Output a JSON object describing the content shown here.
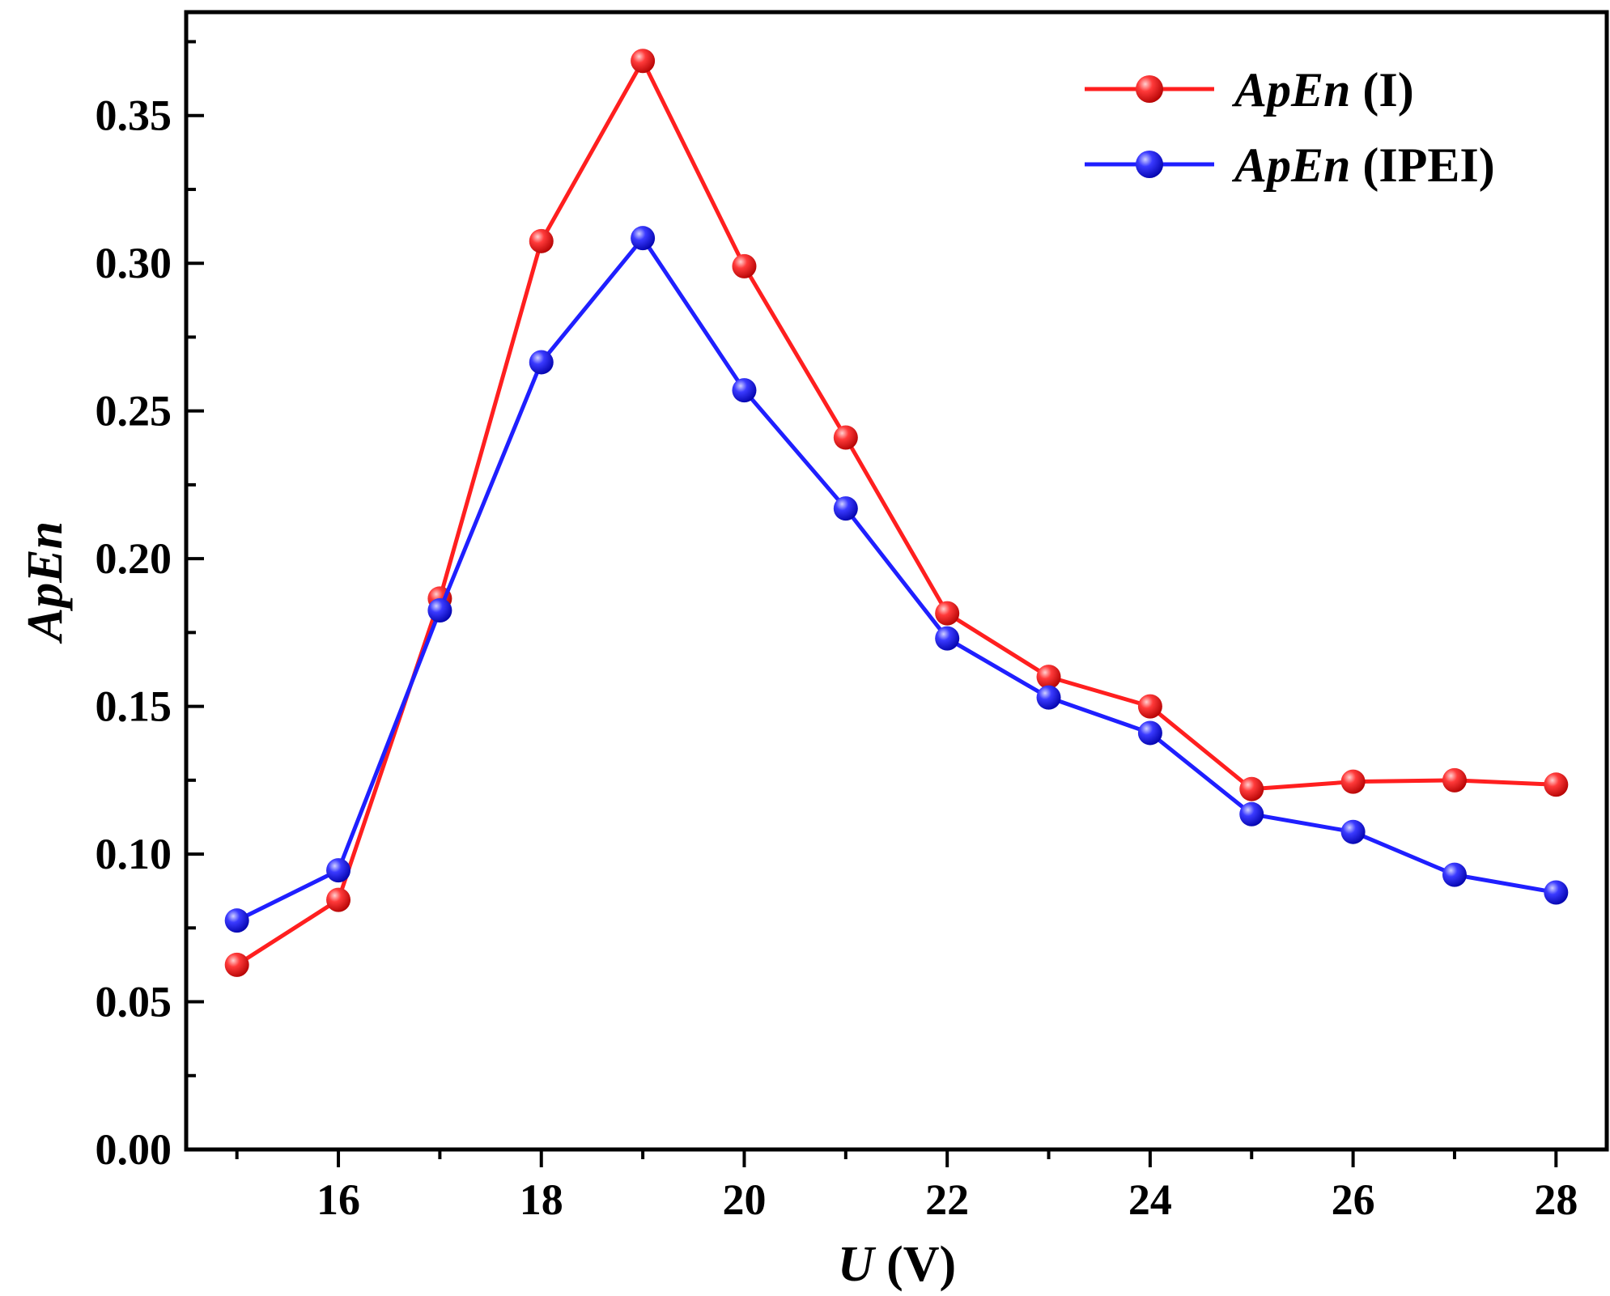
{
  "chart_data": {
    "type": "line",
    "title": "",
    "xlabel": {
      "italic": "U",
      "rest": " (V)"
    },
    "ylabel": "ApEn",
    "xlim": [
      14.5,
      28.5
    ],
    "ylim": [
      0.0,
      0.385
    ],
    "x_ticks": [
      16,
      18,
      20,
      22,
      24,
      26,
      28
    ],
    "x_tick_labels": [
      "16",
      "18",
      "20",
      "22",
      "24",
      "26",
      "28"
    ],
    "y_ticks": [
      0.0,
      0.05,
      0.1,
      0.15,
      0.2,
      0.25,
      0.3,
      0.35
    ],
    "y_tick_labels": [
      "0.00",
      "0.05",
      "0.10",
      "0.15",
      "0.20",
      "0.25",
      "0.30",
      "0.35"
    ],
    "legend_position": "top-right",
    "grid": false,
    "x": [
      15,
      16,
      17,
      18,
      19,
      20,
      21,
      22,
      23,
      24,
      25,
      26,
      27,
      28
    ],
    "series": [
      {
        "name": "ApEn (I)",
        "name_italic": "ApEn",
        "name_rest": " (I)",
        "color": "#ff1f1f",
        "values": [
          0.0625,
          0.0845,
          0.1865,
          0.3075,
          0.3685,
          0.299,
          0.241,
          0.1815,
          0.16,
          0.15,
          0.122,
          0.1245,
          0.125,
          0.1235
        ]
      },
      {
        "name": "ApEn (IPEI)",
        "name_italic": "ApEn",
        "name_rest": " (IPEI)",
        "color": "#1f1fff",
        "values": [
          0.0775,
          0.0945,
          0.1825,
          0.2665,
          0.3085,
          0.257,
          0.217,
          0.173,
          0.153,
          0.141,
          0.1135,
          0.1075,
          0.093,
          0.087
        ]
      }
    ]
  }
}
